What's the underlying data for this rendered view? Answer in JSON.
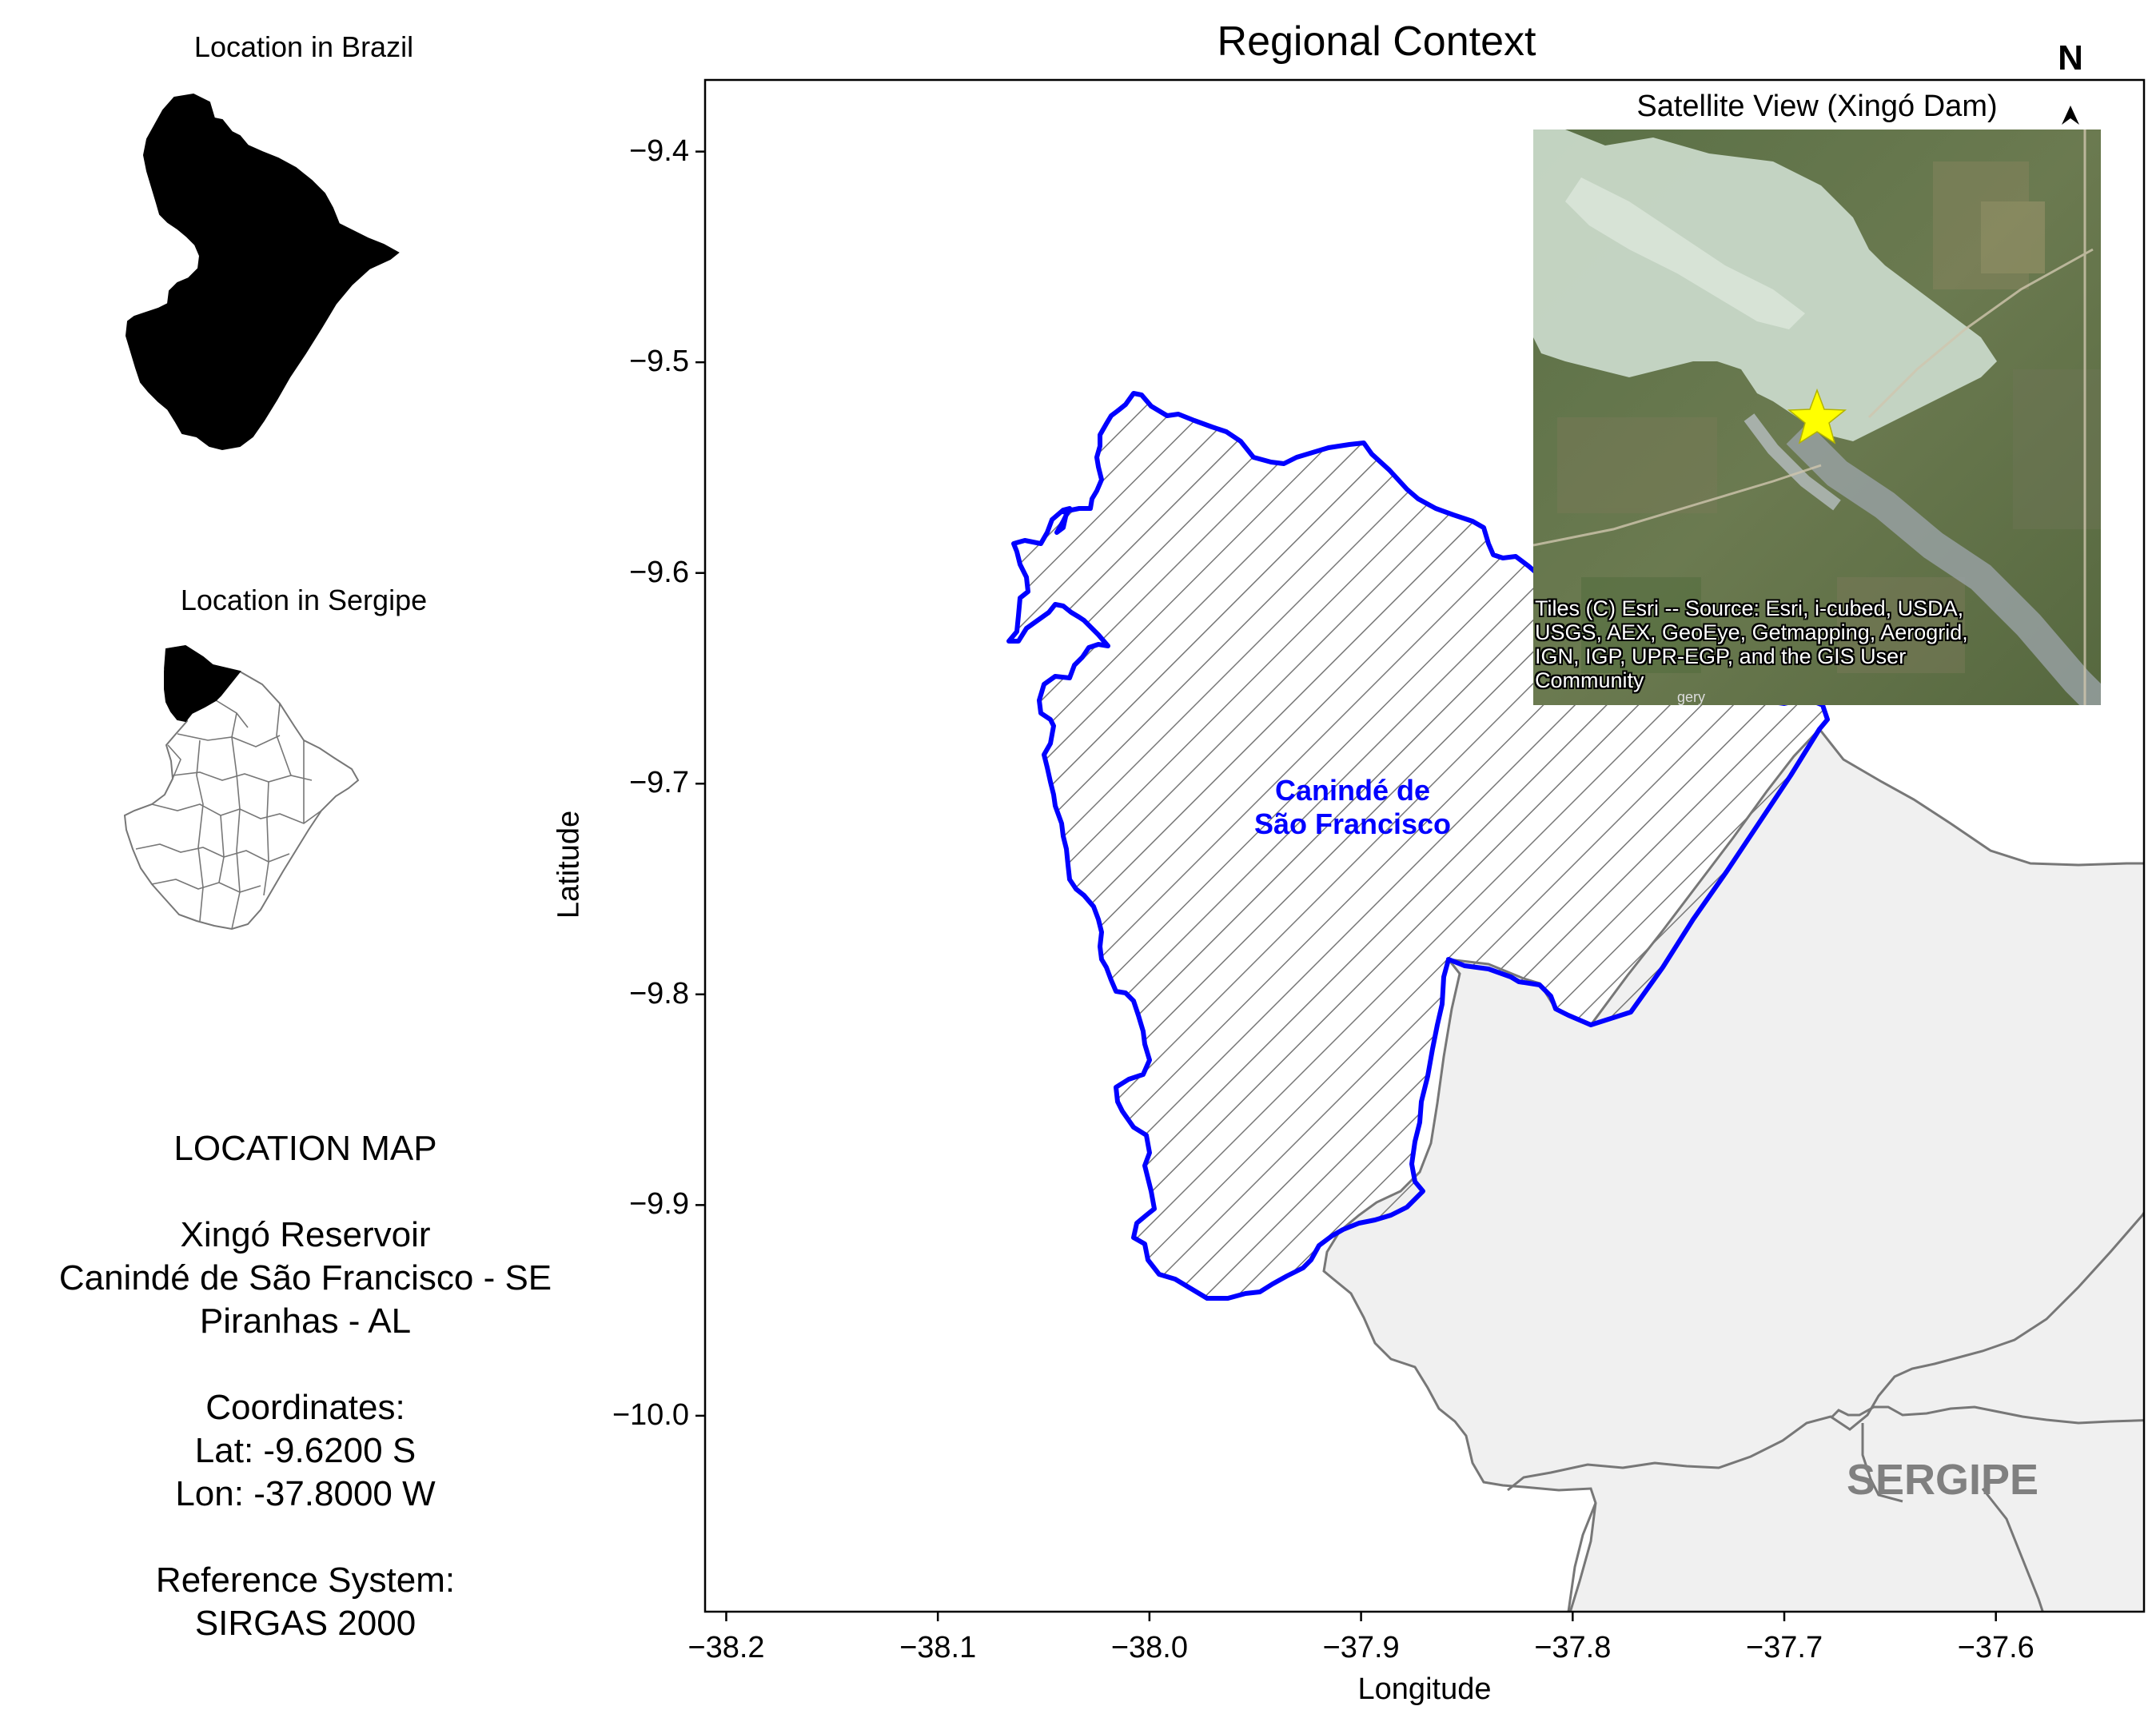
{
  "insets": {
    "brazil_title": "Location in Brazil",
    "sergipe_title": "Location in Sergipe"
  },
  "info": {
    "lines": [
      "LOCATION MAP",
      "",
      "Xingó Reservoir",
      "Canindé de São Francisco - SE",
      "Piranhas - AL",
      "",
      "Coordinates:",
      "Lat: -9.6200 S",
      "Lon: -37.8000 W",
      "",
      "Reference System:",
      "SIRGAS 2000"
    ]
  },
  "main_map": {
    "title": "Regional Context",
    "xlabel": "Longitude",
    "ylabel": "Latitude",
    "xlim": [
      -38.21,
      -37.53
    ],
    "ylim": [
      -10.093,
      -9.366
    ],
    "xticks": [
      -38.2,
      -38.1,
      -38.0,
      -37.9,
      -37.8,
      -37.7,
      -37.6
    ],
    "xtick_labels": [
      "−38.2",
      "−38.1",
      "−38.0",
      "−37.9",
      "−37.8",
      "−37.7",
      "−37.6"
    ],
    "yticks": [
      -9.4,
      -9.5,
      -9.6,
      -9.7,
      -9.8,
      -9.9,
      -10.0
    ],
    "ytick_labels": [
      "−9.4",
      "−9.5",
      "−9.6",
      "−9.7",
      "−9.8",
      "−9.9",
      "−10.0"
    ],
    "municipality_label_line1": "Canindé de",
    "municipality_label_line2": "São Francisco",
    "state_label": "SERGIPE",
    "north_label": "N",
    "colors": {
      "municipality_outline": "#0000ff",
      "hatch": "#777777",
      "state_fill": "#f0f0f0",
      "state_border": "#777777",
      "marker": "#ffff00"
    }
  },
  "satellite": {
    "title": "Satellite View (Xingó Dam)",
    "attribution_lines": [
      "Tiles (C) Esri -- Source: Esri, i-cubed, USDA,",
      "USGS, AEX, GeoEye, Getmapping, Aerogrid,",
      "IGN, IGP, UPR-EGP, and the GIS User",
      "Community"
    ],
    "marker": "star-icon"
  }
}
